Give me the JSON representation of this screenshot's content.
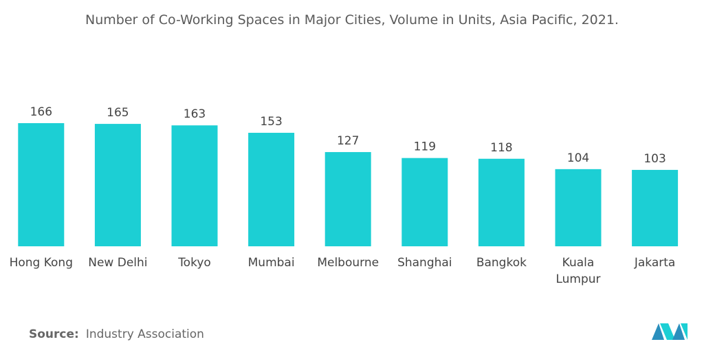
{
  "chart_data": {
    "type": "bar",
    "title": "Number of Co-Working Spaces in Major Cities, Volume in Units, Asia Pacific, 2021.",
    "categories": [
      "Hong Kong",
      "New Delhi",
      "Tokyo",
      "Mumbai",
      "Melbourne",
      "Shanghai",
      "Bangkok",
      "Kuala Lumpur",
      "Jakarta"
    ],
    "values": [
      166,
      165,
      163,
      153,
      127,
      119,
      118,
      104,
      103
    ],
    "color": "#1ccfd4",
    "source_label": "Source:",
    "source": "Industry Association"
  }
}
